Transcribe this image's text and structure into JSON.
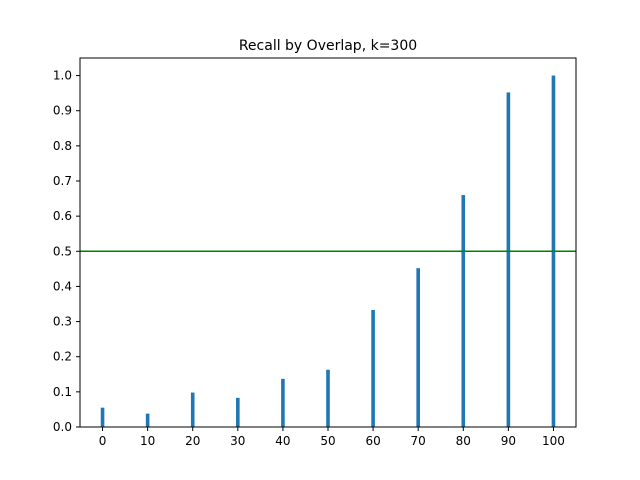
{
  "chart_data": {
    "type": "bar",
    "title": "Recall by Overlap, k=300",
    "xlabel": "",
    "ylabel": "",
    "x": [
      0,
      10,
      20,
      30,
      40,
      50,
      60,
      70,
      80,
      90,
      100
    ],
    "values": [
      0.055,
      0.038,
      0.098,
      0.083,
      0.137,
      0.163,
      0.333,
      0.452,
      0.66,
      0.952,
      1.0
    ],
    "xlim": [
      -5,
      105
    ],
    "ylim": [
      0,
      1.05
    ],
    "xticks": [
      "0",
      "10",
      "20",
      "30",
      "40",
      "50",
      "60",
      "70",
      "80",
      "90",
      "100"
    ],
    "yticks": [
      "0.0",
      "0.1",
      "0.2",
      "0.3",
      "0.4",
      "0.5",
      "0.6",
      "0.7",
      "0.8",
      "0.9",
      "1.0"
    ],
    "reference_line": {
      "y": 0.5,
      "color": "#008000"
    },
    "bar_color": "#1f77b4",
    "grid": false,
    "legend": "none"
  }
}
